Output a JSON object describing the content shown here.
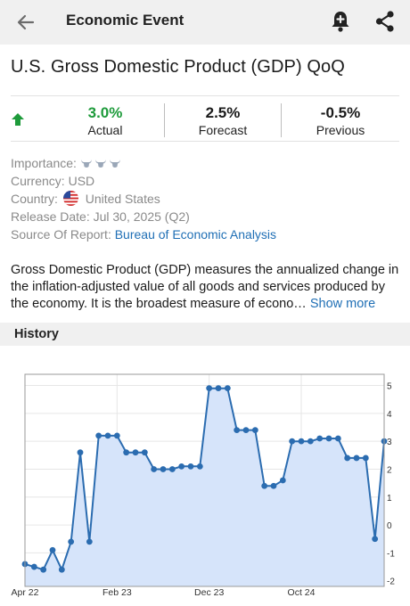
{
  "header": {
    "title": "Economic Event",
    "back_icon": "arrow-left-icon",
    "alert_icon": "bell-plus-icon",
    "share_icon": "share-icon"
  },
  "event": {
    "title": "U.S. Gross Domestic Product (GDP) QoQ",
    "actual": {
      "value": "3.0%",
      "label": "Actual"
    },
    "forecast": {
      "value": "2.5%",
      "label": "Forecast"
    },
    "previous": {
      "value": "-0.5%",
      "label": "Previous"
    },
    "trend_icon": "arrow-up-icon",
    "colors": {
      "actual_green": "#1e9b3b",
      "link_blue": "#1f6fb5"
    }
  },
  "details": {
    "importance_label": "Importance:",
    "importance_level": 3,
    "currency_label": "Currency:",
    "currency": "USD",
    "country_label": "Country:",
    "country": "United States",
    "release_label": "Release Date:",
    "release_date": "Jul 30, 2025 (Q2)",
    "source_label": "Source Of Report:",
    "source": "Bureau of Economic Analysis"
  },
  "description": {
    "text": "Gross Domestic Product (GDP) measures the annualized change in the inflation-adjusted value of all goods and services produced by the economy. It is the broadest measure of econo…",
    "show_more": "Show more"
  },
  "history": {
    "label": "History"
  },
  "chart_data": {
    "type": "area",
    "x_tick_labels": [
      "Apr 22",
      "Feb 23",
      "Dec 23",
      "Oct 24"
    ],
    "x_tick_index": [
      0,
      10,
      20,
      30
    ],
    "y_ticks": [
      "-2",
      "-1",
      "0",
      "1",
      "2",
      "3",
      "4",
      "5"
    ],
    "ylim": [
      -2.2,
      5.4
    ],
    "values": [
      -1.4,
      -1.5,
      -1.6,
      -0.9,
      -1.6,
      -0.6,
      2.6,
      -0.6,
      3.2,
      3.2,
      3.2,
      2.6,
      2.6,
      2.6,
      2.0,
      2.0,
      2.0,
      2.1,
      2.1,
      2.1,
      4.9,
      4.9,
      4.9,
      3.4,
      3.4,
      3.4,
      1.4,
      1.4,
      1.6,
      3.0,
      3.0,
      3.0,
      3.1,
      3.1,
      3.1,
      2.4,
      2.4,
      2.4,
      -0.5,
      3.0
    ],
    "grid": true,
    "line_color": "#2b6cb0",
    "fill_color": "#d6e4fa"
  }
}
